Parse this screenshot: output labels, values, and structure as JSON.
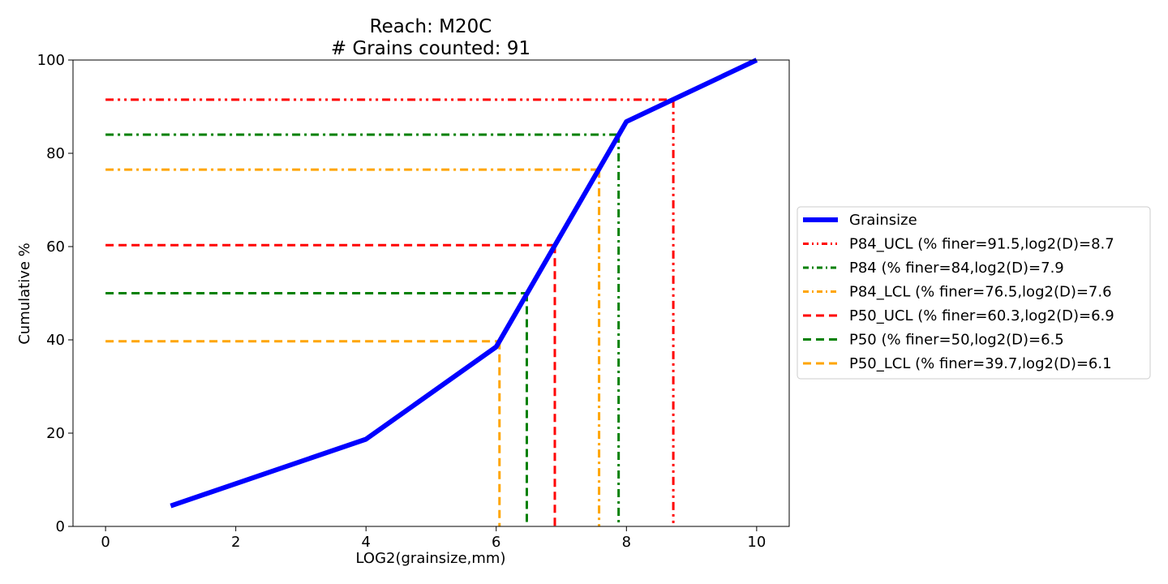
{
  "chart_data": {
    "type": "line",
    "title": "Reach: M20C",
    "subtitle": "# Grains counted: 91",
    "xlabel": "LOG2(grainsize,mm)",
    "ylabel": "Cumulative %",
    "xlim": [
      -0.5,
      10.5
    ],
    "ylim": [
      0,
      100
    ],
    "xticks": [
      "0",
      "2",
      "4",
      "6",
      "8",
      "10"
    ],
    "yticks": [
      "0",
      "20",
      "40",
      "60",
      "80",
      "100"
    ],
    "grid": false,
    "legend_position": "center-right-outside",
    "series": [
      {
        "name": "Grainsize",
        "color": "#0000ff",
        "style": "solid",
        "x": [
          1,
          4,
          6,
          8,
          10
        ],
        "y": [
          4.4,
          18.7,
          38.5,
          86.8,
          100
        ]
      }
    ],
    "reference_lines": [
      {
        "name": "P84_UCL (% finer=91.5,log2(D)=8.7",
        "color": "#ff0000",
        "style": "dashdotdot",
        "y": 91.5,
        "x": 8.72
      },
      {
        "name": "P84 (% finer=84,log2(D)=7.9",
        "color": "#008000",
        "style": "dashdot",
        "y": 84,
        "x": 7.88
      },
      {
        "name": "P84_LCL (% finer=76.5,log2(D)=7.6",
        "color": "#ffa500",
        "style": "dashdot",
        "y": 76.5,
        "x": 7.58
      },
      {
        "name": "P50_UCL (% finer=60.3,log2(D)=6.9",
        "color": "#ff0000",
        "style": "dashed",
        "y": 60.3,
        "x": 6.9
      },
      {
        "name": "P50 (% finer=50,log2(D)=6.5",
        "color": "#008000",
        "style": "dashed",
        "y": 50,
        "x": 6.47
      },
      {
        "name": "P50_LCL (% finer=39.7,log2(D)=6.1",
        "color": "#ffa500",
        "style": "dashed",
        "y": 39.7,
        "x": 6.05
      }
    ]
  }
}
